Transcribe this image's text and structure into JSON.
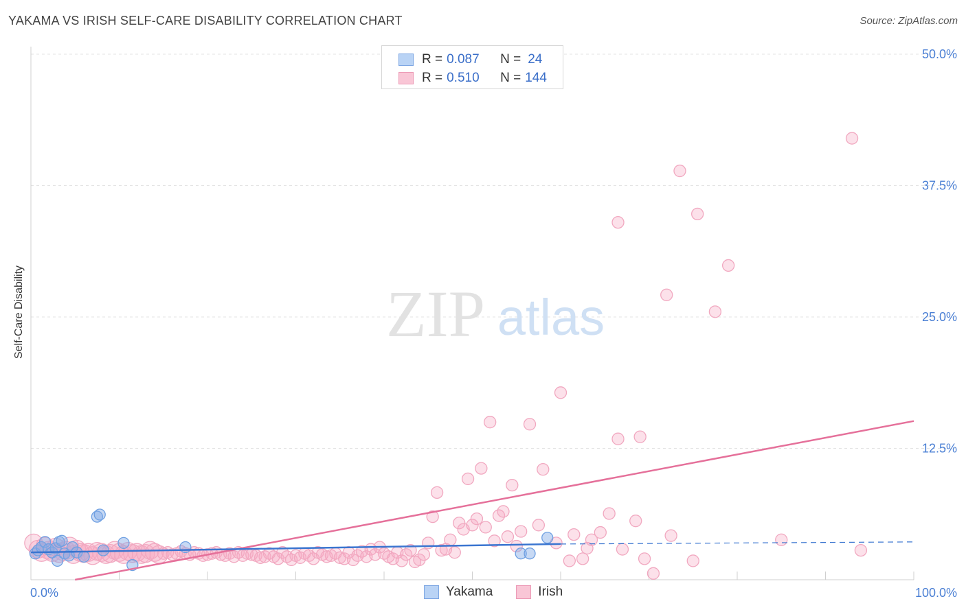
{
  "header": {
    "title": "YAKAMA VS IRISH SELF-CARE DISABILITY CORRELATION CHART",
    "source": "Source: ZipAtlas.com"
  },
  "watermark": {
    "zip": "ZIP",
    "atlas": "atlas"
  },
  "legend": {
    "rows": [
      {
        "r_label": "R = ",
        "r_value": "0.087",
        "n_label": "N = ",
        "n_value": "24",
        "fill": "#b9d3f5",
        "stroke": "#7ea7e3"
      },
      {
        "r_label": "R = ",
        "r_value": "0.510",
        "n_label": "N = ",
        "n_value": "144",
        "fill": "#f9c6d6",
        "stroke": "#ec9ab6"
      }
    ],
    "series": [
      {
        "name": "Yakama",
        "fill": "#b9d3f5",
        "stroke": "#7ea7e3"
      },
      {
        "name": "Irish",
        "fill": "#f9c6d6",
        "stroke": "#ec9ab6"
      }
    ]
  },
  "chart_data": {
    "type": "scatter",
    "title": "YAKAMA VS IRISH SELF-CARE DISABILITY CORRELATION CHART",
    "xlabel": "",
    "ylabel": "Self-Care Disability",
    "xlim": [
      0,
      100
    ],
    "ylim": [
      0,
      50
    ],
    "x_tick_labels": [
      "0.0%",
      "100.0%"
    ],
    "y_ticks": [
      12.5,
      25.0,
      37.5,
      50.0
    ],
    "y_tick_labels": [
      "12.5%",
      "25.0%",
      "37.5%",
      "50.0%"
    ],
    "grid": true,
    "legend_position": "top-center",
    "colors": {
      "yakama": "#6fa0e2",
      "yakama_line": "#3a75d0",
      "irish": "#f1a8c0",
      "irish_line": "#e5709a",
      "axis_text": "#4a7fd4"
    },
    "series": [
      {
        "name": "Yakama",
        "points": [
          [
            0.5,
            2.5
          ],
          [
            0.8,
            2.8
          ],
          [
            1.2,
            3.1
          ],
          [
            1.6,
            3.6
          ],
          [
            2.0,
            2.9
          ],
          [
            2.4,
            2.6
          ],
          [
            2.8,
            3.0
          ],
          [
            3.0,
            1.8
          ],
          [
            3.2,
            3.6
          ],
          [
            3.5,
            3.7
          ],
          [
            3.8,
            2.5
          ],
          [
            4.3,
            2.3
          ],
          [
            4.7,
            3.1
          ],
          [
            5.2,
            2.6
          ],
          [
            6.0,
            2.2
          ],
          [
            7.5,
            6.0
          ],
          [
            7.8,
            6.2
          ],
          [
            8.2,
            2.8
          ],
          [
            10.5,
            3.5
          ],
          [
            11.5,
            1.4
          ],
          [
            17.5,
            3.1
          ],
          [
            55.5,
            2.5
          ],
          [
            56.5,
            2.5
          ],
          [
            58.5,
            4.0
          ]
        ],
        "trend": {
          "x": [
            0,
            60
          ],
          "y": [
            2.6,
            3.4
          ]
        },
        "trend_ext": {
          "x": [
            60,
            100
          ],
          "y": [
            3.4,
            3.6
          ]
        }
      },
      {
        "name": "Irish",
        "points": [
          [
            0.3,
            3.5
          ],
          [
            0.8,
            2.9
          ],
          [
            1.2,
            2.6
          ],
          [
            1.6,
            3.2
          ],
          [
            2.0,
            2.8
          ],
          [
            2.4,
            2.6
          ],
          [
            2.8,
            3.1
          ],
          [
            3.2,
            2.5
          ],
          [
            3.6,
            2.7
          ],
          [
            4.0,
            2.8
          ],
          [
            4.4,
            3.2
          ],
          [
            4.8,
            2.4
          ],
          [
            5.2,
            2.9
          ],
          [
            5.6,
            2.6
          ],
          [
            6.0,
            2.5
          ],
          [
            6.5,
            2.6
          ],
          [
            7.0,
            2.3
          ],
          [
            7.5,
            2.7
          ],
          [
            8.0,
            2.6
          ],
          [
            8.5,
            2.4
          ],
          [
            9.0,
            2.5
          ],
          [
            9.5,
            2.8
          ],
          [
            10.0,
            2.6
          ],
          [
            10.5,
            2.4
          ],
          [
            11.0,
            2.7
          ],
          [
            11.5,
            2.5
          ],
          [
            12.0,
            2.6
          ],
          [
            12.5,
            2.4
          ],
          [
            13.0,
            2.5
          ],
          [
            13.5,
            2.8
          ],
          [
            14.0,
            2.6
          ],
          [
            14.5,
            2.4
          ],
          [
            15.0,
            2.5
          ],
          [
            15.5,
            2.6
          ],
          [
            16.0,
            2.4
          ],
          [
            16.5,
            2.5
          ],
          [
            17.0,
            2.7
          ],
          [
            17.5,
            2.5
          ],
          [
            18.0,
            2.4
          ],
          [
            18.5,
            2.6
          ],
          [
            19.0,
            2.5
          ],
          [
            19.5,
            2.3
          ],
          [
            20.0,
            2.4
          ],
          [
            20.5,
            2.5
          ],
          [
            21.0,
            2.6
          ],
          [
            21.5,
            2.4
          ],
          [
            22.0,
            2.3
          ],
          [
            22.5,
            2.5
          ],
          [
            23.0,
            2.2
          ],
          [
            23.5,
            2.6
          ],
          [
            24.0,
            2.3
          ],
          [
            24.5,
            2.5
          ],
          [
            25.0,
            2.4
          ],
          [
            25.5,
            2.3
          ],
          [
            26.0,
            2.1
          ],
          [
            26.5,
            2.2
          ],
          [
            27.0,
            2.5
          ],
          [
            27.5,
            2.2
          ],
          [
            28.0,
            2.0
          ],
          [
            28.5,
            2.6
          ],
          [
            29.0,
            2.2
          ],
          [
            29.5,
            1.9
          ],
          [
            30.0,
            2.3
          ],
          [
            30.5,
            2.1
          ],
          [
            31.0,
            2.5
          ],
          [
            31.5,
            2.3
          ],
          [
            32.0,
            2.0
          ],
          [
            32.5,
            2.6
          ],
          [
            33.0,
            2.4
          ],
          [
            33.5,
            2.2
          ],
          [
            34.0,
            2.3
          ],
          [
            34.5,
            2.5
          ],
          [
            35.0,
            2.1
          ],
          [
            35.5,
            2.0
          ],
          [
            36.0,
            2.6
          ],
          [
            36.5,
            1.9
          ],
          [
            37.0,
            2.3
          ],
          [
            37.5,
            2.7
          ],
          [
            38.0,
            2.2
          ],
          [
            38.5,
            2.9
          ],
          [
            39.0,
            2.4
          ],
          [
            39.5,
            3.1
          ],
          [
            40.0,
            2.5
          ],
          [
            40.5,
            2.2
          ],
          [
            41.0,
            2.0
          ],
          [
            41.5,
            2.6
          ],
          [
            42.0,
            1.8
          ],
          [
            42.5,
            2.4
          ],
          [
            43.0,
            2.8
          ],
          [
            43.5,
            1.7
          ],
          [
            44.0,
            1.9
          ],
          [
            44.5,
            2.4
          ],
          [
            45.0,
            3.5
          ],
          [
            45.5,
            6.0
          ],
          [
            46.0,
            8.3
          ],
          [
            46.5,
            2.8
          ],
          [
            47.0,
            2.9
          ],
          [
            47.5,
            3.8
          ],
          [
            48.0,
            2.6
          ],
          [
            48.5,
            5.4
          ],
          [
            49.0,
            4.8
          ],
          [
            49.5,
            9.6
          ],
          [
            50.0,
            5.2
          ],
          [
            50.5,
            5.8
          ],
          [
            51.0,
            10.6
          ],
          [
            51.5,
            5.0
          ],
          [
            52.0,
            15.0
          ],
          [
            52.5,
            3.7
          ],
          [
            53.0,
            6.1
          ],
          [
            53.5,
            6.5
          ],
          [
            54.0,
            4.1
          ],
          [
            54.5,
            9.0
          ],
          [
            55.0,
            3.2
          ],
          [
            55.5,
            4.6
          ],
          [
            56.5,
            14.8
          ],
          [
            57.5,
            5.2
          ],
          [
            58.0,
            10.5
          ],
          [
            59.5,
            3.5
          ],
          [
            60.0,
            17.8
          ],
          [
            61.0,
            1.8
          ],
          [
            61.5,
            4.3
          ],
          [
            62.5,
            2.0
          ],
          [
            63.0,
            3.0
          ],
          [
            63.5,
            3.8
          ],
          [
            64.5,
            4.5
          ],
          [
            65.5,
            6.3
          ],
          [
            66.5,
            13.4
          ],
          [
            67.0,
            2.9
          ],
          [
            68.5,
            5.6
          ],
          [
            69.0,
            13.6
          ],
          [
            69.5,
            2.0
          ],
          [
            70.5,
            0.6
          ],
          [
            72.0,
            27.1
          ],
          [
            72.5,
            4.2
          ],
          [
            73.5,
            38.9
          ],
          [
            75.0,
            1.8
          ],
          [
            75.5,
            34.8
          ],
          [
            77.5,
            25.5
          ],
          [
            79.0,
            29.9
          ],
          [
            85.0,
            3.8
          ],
          [
            93.0,
            42.0
          ],
          [
            94.0,
            2.8
          ],
          [
            66.5,
            34.0
          ]
        ],
        "trend": {
          "x": [
            5,
            100
          ],
          "y": [
            0,
            15.1
          ]
        }
      }
    ]
  }
}
